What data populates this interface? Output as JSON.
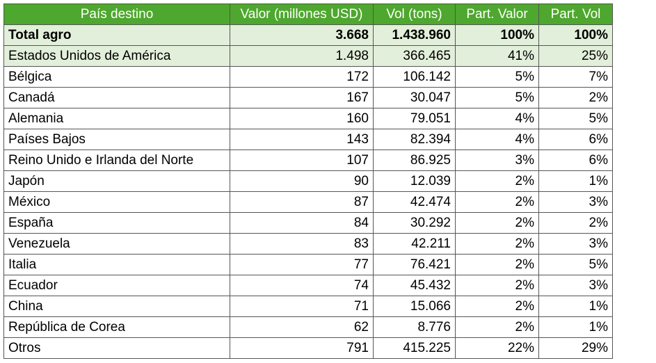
{
  "headers": [
    "País destino",
    "Valor (millones USD)",
    "Vol (tons)",
    "Part. Valor",
    "Part. Vol"
  ],
  "rows": [
    [
      "Total agro",
      "3.668",
      "1.438.960",
      "100%",
      "100%"
    ],
    [
      "Estados Unidos de América",
      "1.498",
      "366.465",
      "41%",
      "25%"
    ],
    [
      "Bélgica",
      "172",
      "106.142",
      "5%",
      "7%"
    ],
    [
      "Canadá",
      "167",
      "30.047",
      "5%",
      "2%"
    ],
    [
      "Alemania",
      "160",
      "79.051",
      "4%",
      "5%"
    ],
    [
      "Países Bajos",
      "143",
      "82.394",
      "4%",
      "6%"
    ],
    [
      "Reino Unido e Irlanda del Norte",
      "107",
      "86.925",
      "3%",
      "6%"
    ],
    [
      "Japón",
      "90",
      "12.039",
      "2%",
      "1%"
    ],
    [
      "México",
      "87",
      "42.474",
      "2%",
      "3%"
    ],
    [
      "España",
      "84",
      "30.292",
      "2%",
      "2%"
    ],
    [
      "Venezuela",
      "83",
      "42.211",
      "2%",
      "3%"
    ],
    [
      "Italia",
      "77",
      "76.421",
      "2%",
      "5%"
    ],
    [
      "Ecuador",
      "74",
      "45.432",
      "2%",
      "3%"
    ],
    [
      "China",
      "71",
      "15.066",
      "2%",
      "1%"
    ],
    [
      "República de Corea",
      "62",
      "8.776",
      "2%",
      "1%"
    ],
    [
      "Otros",
      "791",
      "415.225",
      "22%",
      "29%"
    ]
  ]
}
